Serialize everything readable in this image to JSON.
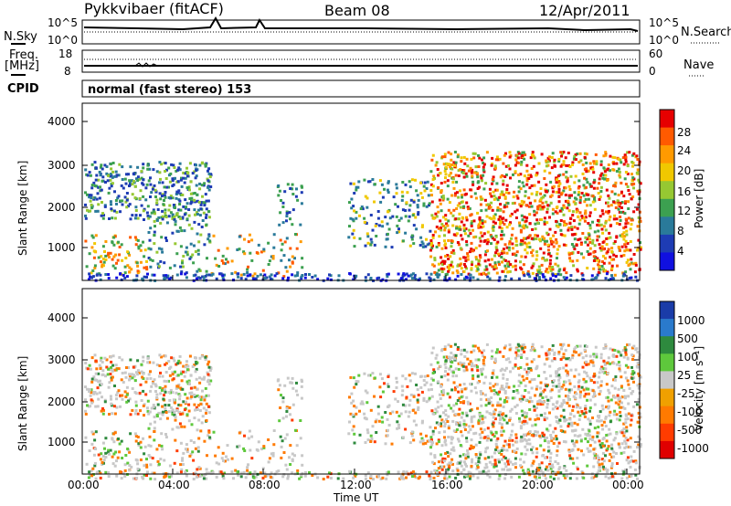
{
  "header": {
    "radar": "Pykkvibaer (fitACF)",
    "beam": "Beam 08",
    "date": "12/Apr/2011"
  },
  "strips": {
    "nsky_label": "N.Sky",
    "nsky_ticks": [
      "10^5",
      "10^0"
    ],
    "nsearch_label": "N.Search",
    "nsearch_ticks": [
      "10^5",
      "10^0"
    ],
    "freq_label_1": "Freq.",
    "freq_label_2": "[MHz]",
    "freq_ticks": [
      "18",
      "8"
    ],
    "nave_label": "Nave",
    "nave_ticks": [
      "60",
      "0"
    ],
    "cpid_label": "CPID",
    "cpid_value": "normal (fast stereo) 153"
  },
  "chart_data": [
    {
      "type": "heatmap",
      "ylabel": "Slant Range [km]",
      "y_ticks": [
        "4000",
        "3000",
        "2000",
        "1000"
      ],
      "ylim": [
        180,
        4500
      ],
      "colorbar": {
        "label": "Power [dB]",
        "ticks": [
          "28",
          "24",
          "20",
          "16",
          "12",
          "8",
          "4"
        ],
        "colors": [
          "#e60000",
          "#ff5a00",
          "#ff9a00",
          "#f0c800",
          "#96c832",
          "#3ca050",
          "#2a7a9a",
          "#1e3cb4",
          "#1010e0"
        ]
      }
    },
    {
      "type": "heatmap",
      "ylabel": "Slant Range [km]",
      "y_ticks": [
        "4000",
        "3000",
        "2000",
        "1000"
      ],
      "ylim": [
        180,
        4500
      ],
      "xlabel": "Time UT",
      "x_ticks": [
        "00:00",
        "04:00",
        "08:00",
        "12:00",
        "16:00",
        "20:00",
        "00:00"
      ],
      "colorbar": {
        "label": "Velocity [m s⁻¹]",
        "ticks": [
          "1000",
          "500",
          "100",
          "25",
          "-25",
          "-100",
          "-500",
          "-1000"
        ],
        "colors": [
          "#1a3ca8",
          "#2a7acc",
          "#2e8a3e",
          "#5ec83c",
          "#c8c8c8",
          "#f0a000",
          "#ff7a00",
          "#ff3c00",
          "#e00000"
        ]
      }
    }
  ]
}
